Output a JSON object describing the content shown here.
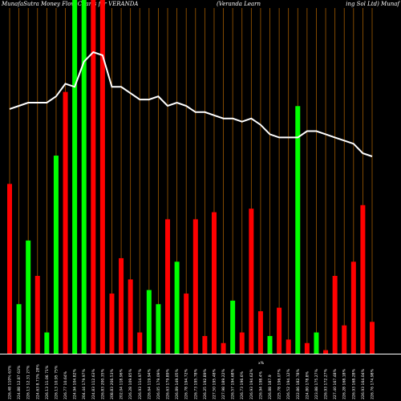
{
  "header": {
    "title_left": "MunafaSutra  Money Flow  Charts for VERANDA",
    "title_mid": "(Veranda  Learn",
    "title_right": "ing Sol Ltd) Munaf"
  },
  "chart_data": {
    "type": "bar",
    "title": "MunafaSutra Money Flow Charts for VERANDA (Veranda Learning Sol Ltd)",
    "line_series_name": "price",
    "ylim": [
      0,
      100
    ],
    "colors": {
      "up": "#00ff00",
      "down": "#ff0000",
      "line": "#ffffff",
      "grid": "#a05a00",
      "bg": "#000000"
    },
    "bars": [
      {
        "label": "226.48 110% 63%",
        "value": 48,
        "color": "down"
      },
      {
        "label": "224.88 12.87 63%",
        "value": 14,
        "color": "up"
      },
      {
        "label": "226.13 12.31 27%",
        "value": 32,
        "color": "up"
      },
      {
        "label": "224.63 8.73% 28%",
        "value": 22,
        "color": "down"
      },
      {
        "label": "226.13 11.06 71%",
        "value": 6,
        "color": "up"
      },
      {
        "label": "226.13 10.95 75%",
        "value": 56,
        "color": "up"
      },
      {
        "label": "226.77 10.64%",
        "value": 74,
        "color": "down"
      },
      {
        "label": "224.94 104.82%",
        "value": 100,
        "color": "up"
      },
      {
        "label": "204.44 179.97%",
        "value": 100,
        "color": "up"
      },
      {
        "label": "224.83 112.63%",
        "value": 100,
        "color": "down"
      },
      {
        "label": "226.83 200.35%",
        "value": 100,
        "color": "down"
      },
      {
        "label": "208.83 206.53%",
        "value": 17,
        "color": "down"
      },
      {
        "label": "202.04 118.96%",
        "value": 27,
        "color": "down"
      },
      {
        "label": "226.28 109.85%",
        "value": 21,
        "color": "down"
      },
      {
        "label": "226.93 114.97%",
        "value": 6,
        "color": "down"
      },
      {
        "label": "226.64 119.94%",
        "value": 18,
        "color": "up"
      },
      {
        "label": "226.05 179.09%",
        "value": 14,
        "color": "up"
      },
      {
        "label": "226.63 179.89%",
        "value": 38,
        "color": "down"
      },
      {
        "label": "226.89 149.05%",
        "value": 26,
        "color": "up"
      },
      {
        "label": "226.78 194.72%",
        "value": 17,
        "color": "down"
      },
      {
        "label": "226.73 195.78%",
        "value": 38,
        "color": "down"
      },
      {
        "label": "226.25 192.89%",
        "value": 5,
        "color": "down"
      },
      {
        "label": "227.50 195.48%",
        "value": 40,
        "color": "down"
      },
      {
        "label": "227.98 189.22%",
        "value": 3,
        "color": "down"
      },
      {
        "label": "226.57 194.68%",
        "value": 15,
        "color": "up"
      },
      {
        "label": "226.73 196.6%",
        "value": 6,
        "color": "down"
      },
      {
        "label": "226.93 194.62%",
        "value": 41,
        "color": "down"
      },
      {
        "label": "226.94 198.4%",
        "value": 12,
        "color": "down"
      },
      {
        "label": "226.88 187.9",
        "value": 5,
        "color": "up"
      },
      {
        "label": "225.78 196.07%",
        "value": 13,
        "color": "down"
      },
      {
        "label": "226.52 194.12%",
        "value": 4,
        "color": "down"
      },
      {
        "label": "222.86 182.78%",
        "value": 70,
        "color": "up"
      },
      {
        "label": "224.80 178.8%",
        "value": 3,
        "color": "down"
      },
      {
        "label": "223.88 175.27%",
        "value": 6,
        "color": "up"
      },
      {
        "label": "226.93 172.27%",
        "value": 1,
        "color": "down"
      },
      {
        "label": "227.40 167.48%",
        "value": 22,
        "color": "down"
      },
      {
        "label": "226.28 168.18%",
        "value": 8,
        "color": "down"
      },
      {
        "label": "226.93 168.28%",
        "value": 26,
        "color": "down"
      },
      {
        "label": "226.93 164.04%",
        "value": 42,
        "color": "down"
      },
      {
        "label": "226.76 174.98%",
        "value": 9,
        "color": "down"
      }
    ],
    "line_values": [
      79,
      80,
      81,
      81,
      81,
      83,
      87,
      86,
      94,
      97,
      96,
      86,
      86,
      84,
      82,
      82,
      83,
      80,
      81,
      80,
      78,
      78,
      77,
      76,
      76,
      75,
      76,
      74,
      71,
      70,
      70,
      70,
      72,
      72,
      71,
      70,
      69,
      68,
      65,
      64
    ],
    "extra_xlabel": "x%"
  }
}
